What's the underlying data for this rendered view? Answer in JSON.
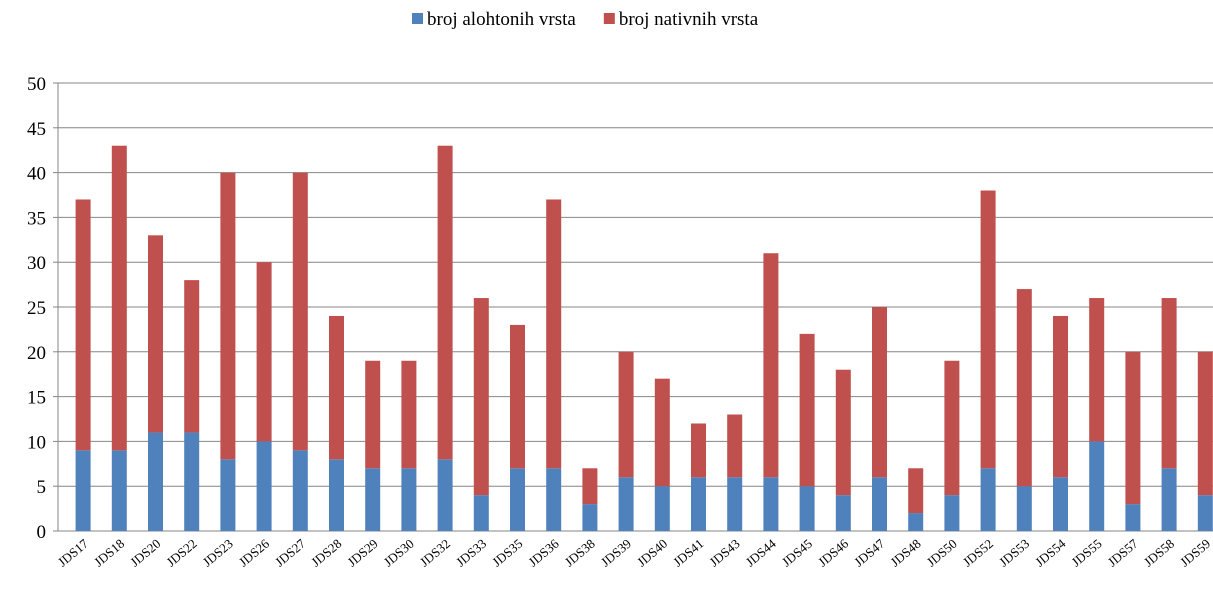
{
  "chart_data": {
    "type": "stacked-bar",
    "categories": [
      "JDS17",
      "JDS18",
      "JDS20",
      "JDS22",
      "JDS23",
      "JDS26",
      "JDS27",
      "JDS28",
      "JDS29",
      "JDS30",
      "JDS32",
      "JDS33",
      "JDS35",
      "JDS36",
      "JDS38",
      "JDS39",
      "JDS40",
      "JDS41",
      "JDS43",
      "JDS44",
      "JDS45",
      "JDS46",
      "JDS47",
      "JDS48",
      "JDS50",
      "JDS52",
      "JDS53",
      "JDS54",
      "JDS55",
      "JDS57",
      "JDS58",
      "JDS59"
    ],
    "series": [
      {
        "name": "broj alohtonih vrsta",
        "color": "#4f81bd",
        "values": [
          9,
          9,
          11,
          11,
          8,
          10,
          9,
          8,
          7,
          7,
          8,
          4,
          7,
          7,
          3,
          6,
          5,
          6,
          6,
          6,
          5,
          4,
          6,
          2,
          4,
          7,
          5,
          6,
          10,
          3,
          7,
          4
        ]
      },
      {
        "name": "broj nativnih vrsta",
        "color": "#c0504d",
        "values": [
          28,
          34,
          22,
          17,
          32,
          20,
          31,
          16,
          12,
          12,
          35,
          22,
          16,
          30,
          4,
          14,
          12,
          6,
          7,
          25,
          17,
          14,
          19,
          5,
          15,
          31,
          22,
          18,
          16,
          17,
          19,
          16
        ]
      }
    ],
    "ylim": [
      0,
      50
    ],
    "yticks": [
      0,
      5,
      10,
      15,
      20,
      25,
      30,
      35,
      40,
      45,
      50
    ],
    "grid": true,
    "legend": "top"
  }
}
